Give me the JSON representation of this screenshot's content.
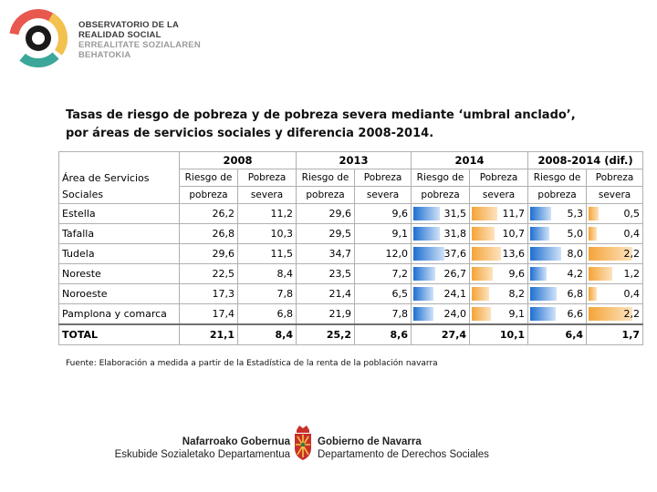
{
  "header": {
    "org_line1": "OBSERVATORIO DE LA",
    "org_line2": "REALIDAD SOCIAL",
    "org_line3": "ERREALITATE SOZIALAREN",
    "org_line4": "BEHATOKIA"
  },
  "title_line1": "Tasas de riesgo de pobreza y de pobreza severa mediante ‘umbral anclado’,",
  "title_line2": "por áreas de servicios sociales y diferencia 2008-2014.",
  "table": {
    "years": [
      "2008",
      "2013",
      "2014",
      "2008-2014 (dif.)"
    ],
    "area_header_1": "Área de Servicios",
    "area_header_2": "Sociales",
    "col_top": [
      "Riesgo de",
      "Pobreza",
      "Riesgo de",
      "Pobreza",
      "Riesgo de",
      "Pobreza",
      "Riesgo de",
      "Pobreza"
    ],
    "col_bottom": [
      "pobreza",
      "severa",
      "pobreza",
      "severa",
      "pobreza",
      "severa",
      "pobreza",
      "severa"
    ],
    "rows": [
      {
        "area": "Estella",
        "v": [
          "26,2",
          "11,2",
          "29,6",
          "9,6",
          "31,5",
          "11,7",
          "5,3",
          "0,5"
        ],
        "bars": [
          31.5,
          11.7,
          5.3,
          0.5
        ]
      },
      {
        "area": "Tafalla",
        "v": [
          "26,8",
          "10,3",
          "29,5",
          "9,1",
          "31,8",
          "10,7",
          "5,0",
          "0,4"
        ],
        "bars": [
          31.8,
          10.7,
          5.0,
          0.4
        ]
      },
      {
        "area": "Tudela",
        "v": [
          "29,6",
          "11,5",
          "34,7",
          "12,0",
          "37,6",
          "13,6",
          "8,0",
          "2,2"
        ],
        "bars": [
          37.6,
          13.6,
          8.0,
          2.2
        ]
      },
      {
        "area": "Noreste",
        "v": [
          "22,5",
          "8,4",
          "23,5",
          "7,2",
          "26,7",
          "9,6",
          "4,2",
          "1,2"
        ],
        "bars": [
          26.7,
          9.6,
          4.2,
          1.2
        ]
      },
      {
        "area": "Noroeste",
        "v": [
          "17,3",
          "7,8",
          "21,4",
          "6,5",
          "24,1",
          "8,2",
          "6,8",
          "0,4"
        ],
        "bars": [
          24.1,
          8.2,
          6.8,
          0.4
        ]
      },
      {
        "area": "Pamplona y comarca",
        "v": [
          "17,4",
          "6,8",
          "21,9",
          "7,8",
          "24,0",
          "9,1",
          "6,6",
          "2,2"
        ],
        "bars": [
          24.0,
          9.1,
          6.6,
          2.2
        ]
      }
    ],
    "total": {
      "area": "TOTAL",
      "v": [
        "21,1",
        "8,4",
        "25,2",
        "8,6",
        "27,4",
        "10,1",
        "6,4",
        "1,7"
      ]
    }
  },
  "source": "Fuente: Elaboración a medida a partir de la Estadística de la renta de la población navarra",
  "footer": {
    "left_line1": "Nafarroako Gobernua",
    "left_line2": "Eskubide Sozialetako Departamentua",
    "right_line1": "Gobierno de Navarra",
    "right_line2": "Departamento de Derechos Sociales"
  },
  "colors": {
    "bar_blue": "#1e6fd0",
    "bar_orange": "#f4a438",
    "logo_ring_red": "#e8584f",
    "logo_ring_yellow": "#f2c14e",
    "logo_ring_teal": "#3aa79a"
  }
}
